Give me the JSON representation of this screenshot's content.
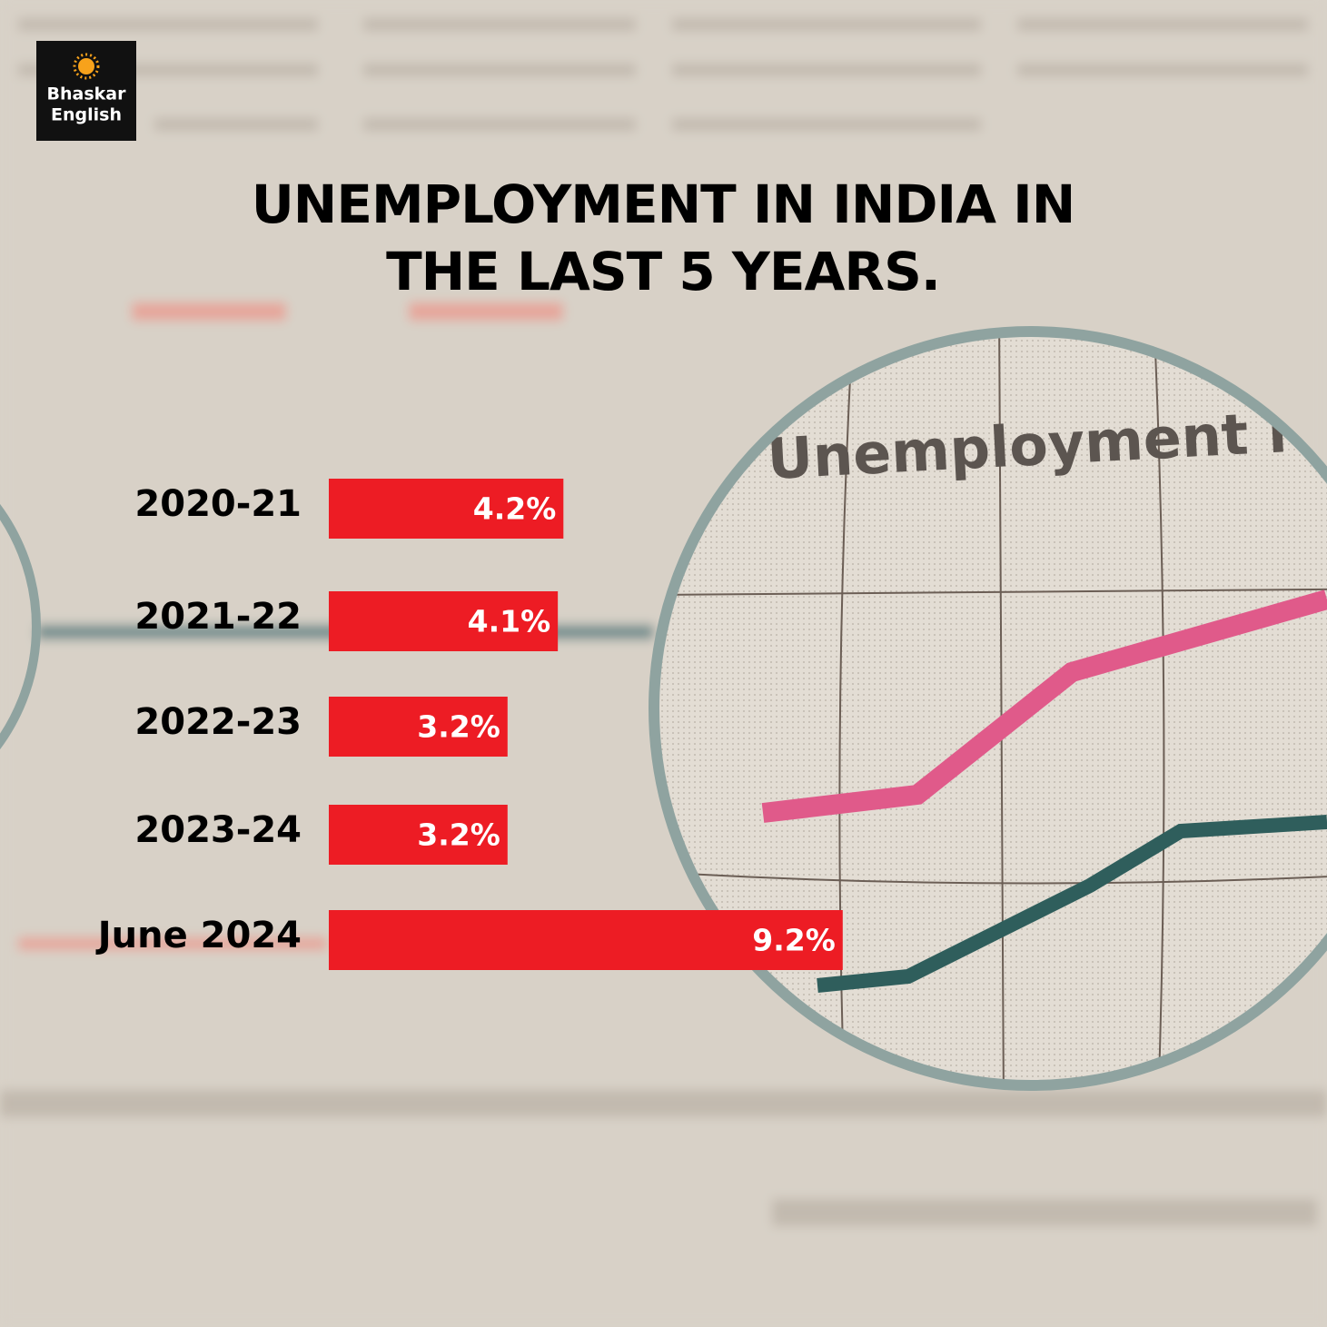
{
  "brand": [
    "Bhaskar",
    "English"
  ],
  "photo_text": "Unemployment r",
  "chart_data": {
    "type": "bar",
    "orientation": "horizontal",
    "title": "UNEMPLOYMENT IN INDIA IN THE LAST 5 YEARS.",
    "categories": [
      "2020-21",
      "2021-22",
      "2022-23",
      "2023-24",
      "June 2024"
    ],
    "values": [
      4.2,
      4.1,
      3.2,
      3.2,
      9.2
    ],
    "value_labels": [
      "4.2%",
      "4.1%",
      "3.2%",
      "3.2%",
      "9.2%"
    ],
    "color": "#ed1c24"
  }
}
